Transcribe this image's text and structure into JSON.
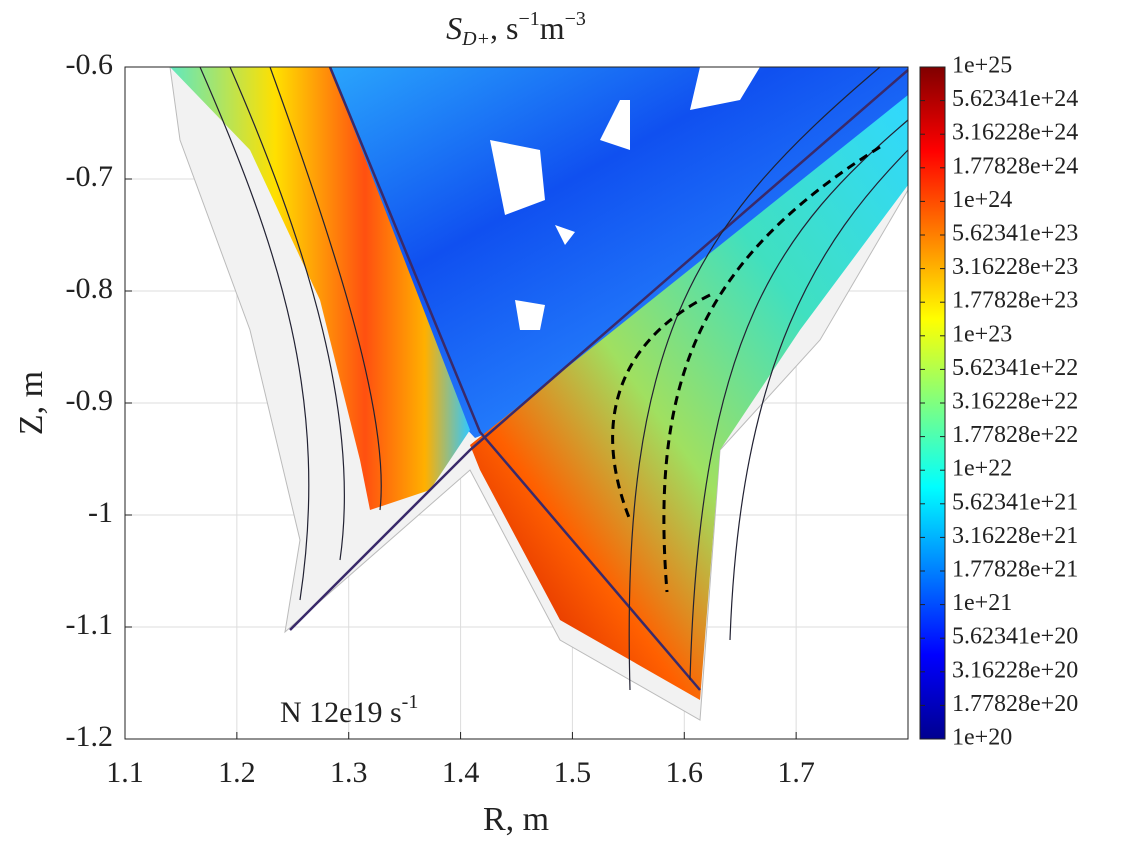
{
  "chart_data": {
    "type": "contour",
    "title": [
      "S",
      "D+",
      ",  s",
      "−1",
      "m",
      "−3"
    ],
    "annotation": [
      "N 12e19  s",
      "-1"
    ],
    "xlabel": "R, m",
    "ylabel": "Z, m",
    "xlim": [
      1.1,
      1.8
    ],
    "xticks": [
      1.1,
      1.2,
      1.3,
      1.4,
      1.5,
      1.6,
      1.7
    ],
    "ylim": [
      -1.2,
      -0.6
    ],
    "yticks": [
      -0.6,
      -0.7,
      -0.8,
      -0.9,
      -1,
      -1.1,
      -1.2
    ],
    "grid": true,
    "colorbar": {
      "log": true,
      "colormap": "jet",
      "lim": [
        1e+20,
        1e+25
      ],
      "ticks": [
        {
          "value": 1e+25,
          "label": "1e+25"
        },
        {
          "value": 5.62341e+24,
          "label": "5.62341e+24"
        },
        {
          "value": 3.16228e+24,
          "label": "3.16228e+24"
        },
        {
          "value": 1.77828e+24,
          "label": "1.77828e+24"
        },
        {
          "value": 1e+24,
          "label": "1e+24"
        },
        {
          "value": 5.62341e+23,
          "label": "5.62341e+23"
        },
        {
          "value": 3.16228e+23,
          "label": "3.16228e+23"
        },
        {
          "value": 1.77828e+23,
          "label": "1.77828e+23"
        },
        {
          "value": 1e+23,
          "label": "1e+23"
        },
        {
          "value": 5.62341e+22,
          "label": "5.62341e+22"
        },
        {
          "value": 3.16228e+22,
          "label": "3.16228e+22"
        },
        {
          "value": 1.77828e+22,
          "label": "1.77828e+22"
        },
        {
          "value": 1e+22,
          "label": "1e+22"
        },
        {
          "value": 5.62341e+21,
          "label": "5.62341e+21"
        },
        {
          "value": 3.16228e+21,
          "label": "3.16228e+21"
        },
        {
          "value": 1.77828e+21,
          "label": "1.77828e+21"
        },
        {
          "value": 1e+21,
          "label": "1e+21"
        },
        {
          "value": 5.62341e+20,
          "label": "5.62341e+20"
        },
        {
          "value": 3.16228e+20,
          "label": "3.16228e+20"
        },
        {
          "value": 1.77828e+20,
          "label": "1.77828e+20"
        },
        {
          "value": 1e+20,
          "label": "1e+20"
        }
      ]
    }
  }
}
